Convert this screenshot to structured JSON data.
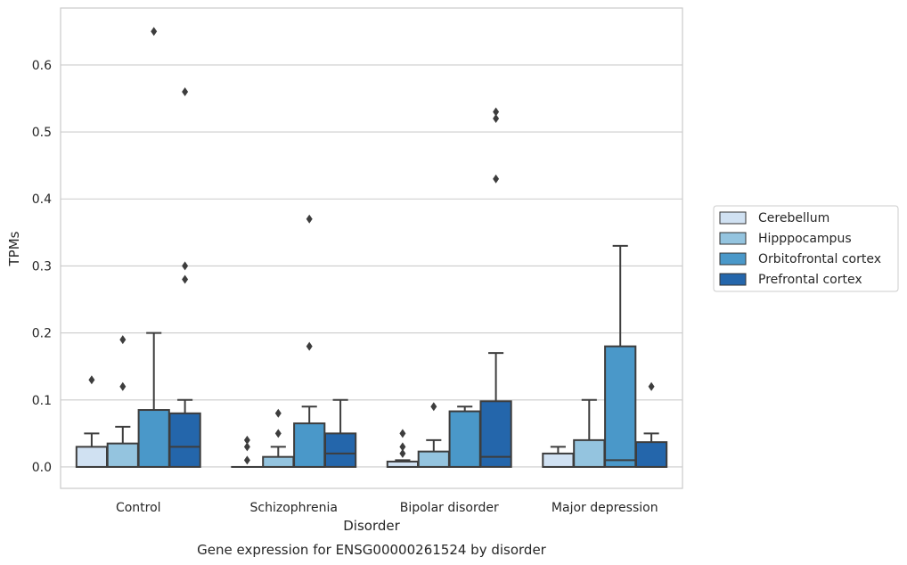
{
  "chart_data": {
    "type": "boxplot",
    "title": "",
    "caption": "Gene expression for ENSG00000261524 by disorder",
    "xlabel": "Disorder",
    "ylabel": "TPMs",
    "ylim": [
      -0.032,
      0.685
    ],
    "yticks": [
      0.0,
      0.1,
      0.2,
      0.3,
      0.4,
      0.5,
      0.6
    ],
    "ytick_labels": [
      "0.0",
      "0.1",
      "0.2",
      "0.3",
      "0.4",
      "0.5",
      "0.6"
    ],
    "grid": "horizontal",
    "legend_position": "outside-right",
    "categories": [
      "Control",
      "Schizophrenia",
      "Bipolar disorder",
      "Major depression"
    ],
    "series": [
      {
        "name": "Cerebellum",
        "color": "#d0e1f2",
        "boxes": [
          {
            "whislo": 0.0,
            "q1": 0.0,
            "med": 0.0,
            "q3": 0.03,
            "whishi": 0.05,
            "fliers": [
              0.13
            ]
          },
          {
            "whislo": 0.0,
            "q1": 0.0,
            "med": 0.0,
            "q3": 0.0,
            "whishi": 0.0,
            "fliers": [
              0.01,
              0.03,
              0.04
            ]
          },
          {
            "whislo": 0.0,
            "q1": 0.0,
            "med": 0.0,
            "q3": 0.008,
            "whishi": 0.01,
            "fliers": [
              0.02,
              0.03,
              0.05
            ]
          },
          {
            "whislo": 0.0,
            "q1": 0.0,
            "med": 0.0,
            "q3": 0.02,
            "whishi": 0.03,
            "fliers": []
          }
        ]
      },
      {
        "name": "Hipppocampus",
        "color": "#94c4df",
        "boxes": [
          {
            "whislo": 0.0,
            "q1": 0.0,
            "med": 0.0,
            "q3": 0.035,
            "whishi": 0.06,
            "fliers": [
              0.12,
              0.19
            ]
          },
          {
            "whislo": 0.0,
            "q1": 0.0,
            "med": 0.0,
            "q3": 0.015,
            "whishi": 0.03,
            "fliers": [
              0.05,
              0.08
            ]
          },
          {
            "whislo": 0.0,
            "q1": 0.0,
            "med": 0.0,
            "q3": 0.023,
            "whishi": 0.04,
            "fliers": [
              0.09
            ]
          },
          {
            "whislo": 0.0,
            "q1": 0.0,
            "med": 0.0,
            "q3": 0.04,
            "whishi": 0.1,
            "fliers": []
          }
        ]
      },
      {
        "name": "Orbitofrontal cortex",
        "color": "#4a98c9",
        "boxes": [
          {
            "whislo": 0.0,
            "q1": 0.0,
            "med": 0.0,
            "q3": 0.085,
            "whishi": 0.2,
            "fliers": [
              0.65
            ]
          },
          {
            "whislo": 0.0,
            "q1": 0.0,
            "med": 0.0,
            "q3": 0.065,
            "whishi": 0.09,
            "fliers": [
              0.18,
              0.37
            ]
          },
          {
            "whislo": 0.0,
            "q1": 0.0,
            "med": 0.0,
            "q3": 0.083,
            "whishi": 0.09,
            "fliers": []
          },
          {
            "whislo": 0.0,
            "q1": 0.0,
            "med": 0.01,
            "q3": 0.18,
            "whishi": 0.33,
            "fliers": []
          }
        ]
      },
      {
        "name": "Prefrontal cortex",
        "color": "#2466ab",
        "boxes": [
          {
            "whislo": 0.0,
            "q1": 0.0,
            "med": 0.03,
            "q3": 0.08,
            "whishi": 0.1,
            "fliers": [
              0.28,
              0.3,
              0.56
            ]
          },
          {
            "whislo": 0.0,
            "q1": 0.0,
            "med": 0.02,
            "q3": 0.05,
            "whishi": 0.1,
            "fliers": []
          },
          {
            "whislo": 0.0,
            "q1": 0.0,
            "med": 0.015,
            "q3": 0.098,
            "whishi": 0.17,
            "fliers": [
              0.43,
              0.52,
              0.53
            ]
          },
          {
            "whislo": 0.0,
            "q1": 0.0,
            "med": 0.0,
            "q3": 0.037,
            "whishi": 0.05,
            "fliers": [
              0.12
            ]
          }
        ]
      }
    ]
  }
}
